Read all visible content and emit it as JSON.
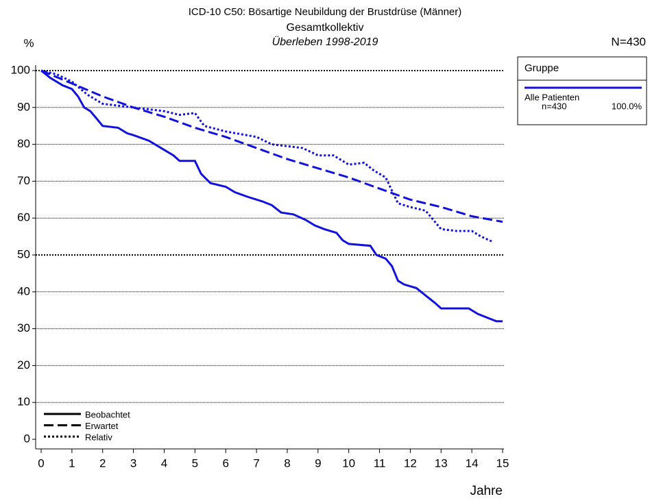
{
  "chart_data": {
    "type": "line",
    "title": "ICD-10 C50: Bösartige Neubildung der Brustdrüse (Männer)",
    "subtitle": "Gesamtkollektiv",
    "period": "Überleben 1998-2019",
    "y_label": "%",
    "x_label": "Jahre",
    "n_label": "N=430",
    "legend_title": "Gruppe",
    "group_name": "Alle Patienten",
    "group_n": "n=430",
    "group_pct": "100.0%",
    "xlim": [
      0,
      15
    ],
    "ylim": [
      0,
      100
    ],
    "xticks": [
      0,
      1,
      2,
      3,
      4,
      5,
      6,
      7,
      8,
      9,
      10,
      11,
      12,
      13,
      14,
      15
    ],
    "yticks": [
      0,
      10,
      20,
      30,
      40,
      50,
      60,
      70,
      80,
      90,
      100
    ],
    "grid": true,
    "series": [
      {
        "name": "Beobachtet",
        "color": "#1010e0",
        "dash": "solid",
        "x": [
          0,
          0.3,
          0.5,
          0.7,
          1.0,
          1.2,
          1.4,
          1.6,
          1.8,
          2.0,
          2.5,
          2.8,
          3.0,
          3.5,
          4.0,
          4.3,
          4.5,
          5.0,
          5.2,
          5.5,
          6.0,
          6.3,
          6.7,
          7.2,
          7.5,
          7.8,
          8.2,
          8.6,
          8.9,
          9.2,
          9.6,
          9.8,
          10.0,
          10.7,
          10.9,
          11.2,
          11.4,
          11.6,
          11.8,
          12.2,
          12.5,
          12.8,
          13.0,
          13.9,
          14.2,
          14.5,
          14.8,
          15
        ],
        "values": [
          100,
          98,
          97,
          96,
          95,
          93,
          90,
          89,
          87,
          85,
          84.5,
          83,
          82.5,
          81,
          78.5,
          77,
          75.5,
          75.5,
          72,
          69.5,
          68.5,
          67,
          65.8,
          64.5,
          63.5,
          61.5,
          61,
          59.5,
          58,
          57,
          56,
          54,
          53,
          52.5,
          50,
          49,
          47,
          43,
          42,
          41,
          39,
          37,
          35.5,
          35.5,
          34,
          33,
          32,
          32
        ]
      },
      {
        "name": "Erwartet",
        "color": "#1010e0",
        "dash": "dashed",
        "x": [
          0,
          1,
          2,
          3,
          4,
          5,
          6,
          7,
          8,
          9,
          10,
          11,
          12,
          13,
          14,
          15
        ],
        "values": [
          100,
          96.5,
          93,
          90,
          87.5,
          84.5,
          82,
          79,
          76,
          73.5,
          71,
          68,
          65,
          63,
          60.5,
          59
        ]
      },
      {
        "name": "Relativ",
        "color": "#1010e0",
        "dash": "dotted",
        "x": [
          0,
          0.5,
          1,
          1.5,
          2,
          3,
          4,
          4.5,
          5,
          5.3,
          6,
          7,
          7.5,
          8,
          8.5,
          9,
          9.5,
          10,
          10.5,
          10.8,
          11.2,
          11.6,
          12,
          12.5,
          12.8,
          13,
          13.5,
          14,
          14.3,
          14.7
        ],
        "values": [
          100,
          99,
          97,
          93.5,
          91,
          90,
          89,
          88,
          88.5,
          85,
          83.5,
          82,
          80,
          79.5,
          79,
          77,
          77,
          74.5,
          75,
          73,
          71,
          64,
          63,
          62,
          59,
          57,
          56.5,
          56.5,
          55,
          53.5
        ]
      }
    ]
  }
}
